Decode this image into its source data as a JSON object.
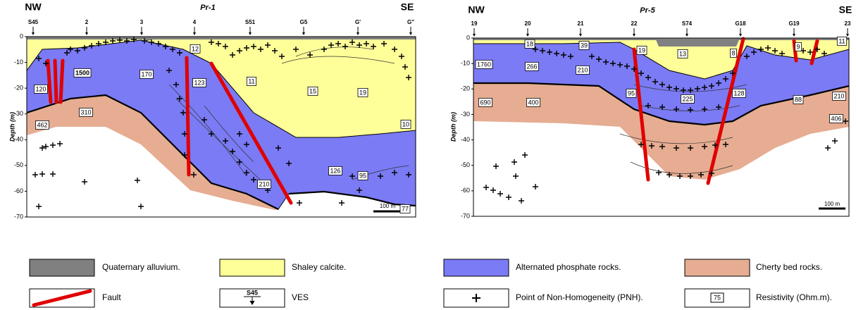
{
  "panels": [
    {
      "title": "Pr-1",
      "left_label": "NW",
      "right_label": "SE",
      "y_axis_label": "Depth (m)",
      "y_ticks": [
        0,
        -10,
        -20,
        -30,
        -40,
        -50,
        -60,
        -70
      ],
      "stations": [
        "S45",
        "2",
        "3",
        "4",
        "S51",
        "G5",
        "G'",
        "G''"
      ],
      "resistivity_labels": [
        12,
        1500,
        170,
        123,
        11,
        15,
        19,
        120,
        310,
        462,
        10,
        126,
        95,
        210,
        77
      ],
      "scale_bar": "100 m"
    },
    {
      "title": "Pr-5",
      "left_label": "NW",
      "right_label": "SE",
      "y_axis_label": "Depth (m)",
      "y_ticks": [
        0,
        -10,
        -20,
        -30,
        -40,
        -50,
        -60,
        -70
      ],
      "stations": [
        "19",
        "20",
        "21",
        "22",
        "S74",
        "G18",
        "G19",
        "23"
      ],
      "resistivity_labels": [
        18,
        39,
        19,
        13,
        8,
        9,
        11,
        1760,
        266,
        210,
        95,
        128,
        88,
        210,
        690,
        400,
        225,
        406
      ],
      "scale_bar": "100 m"
    }
  ],
  "legend": [
    {
      "label": "Quaternary alluvium."
    },
    {
      "label": "Shaley calcite."
    },
    {
      "label": "Alternated phosphate rocks."
    },
    {
      "label": "Cherty bed rocks."
    },
    {
      "label": "Fault"
    },
    {
      "label": "VES",
      "icon_text": "S45"
    },
    {
      "label": "Point of Non-Homogeneity (PNH)."
    },
    {
      "label": "Resistivity (Ohm.m).",
      "icon_text": "75"
    }
  ]
}
